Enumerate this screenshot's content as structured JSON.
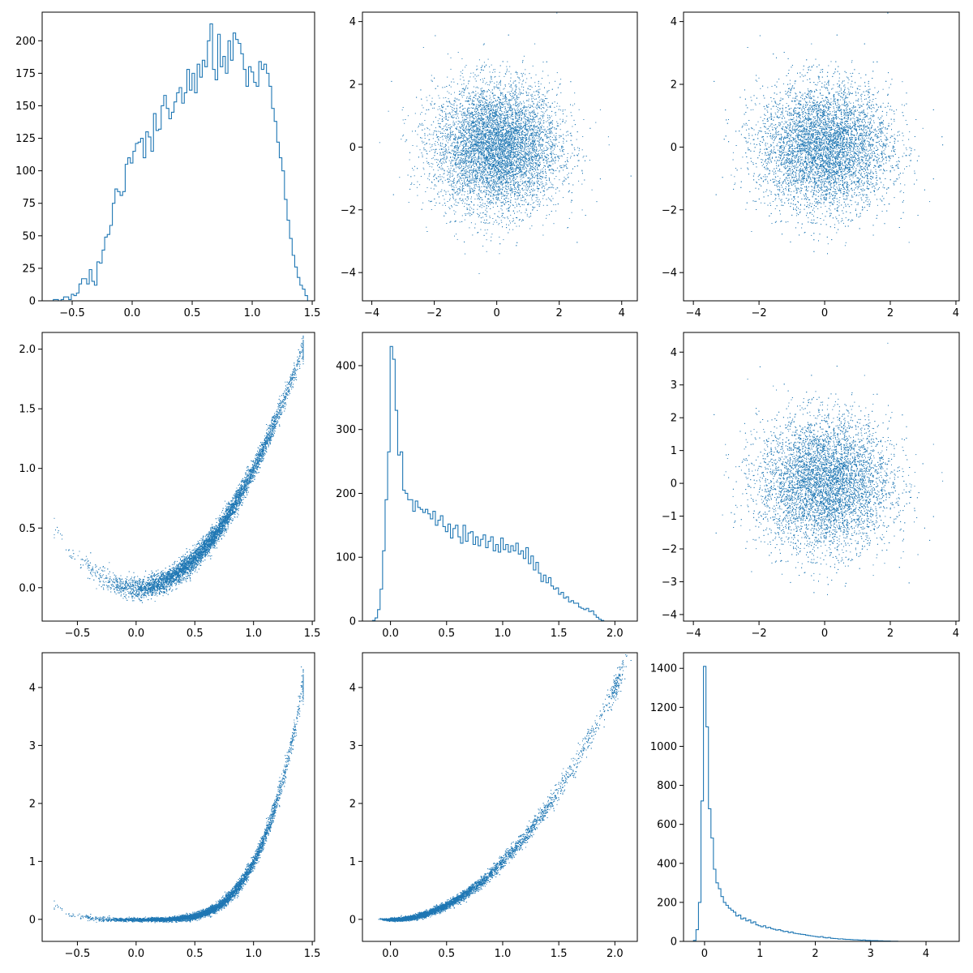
{
  "figure": {
    "background": "#ffffff",
    "accent": "#1f77b4"
  },
  "chart_data": [
    {
      "panel": "row1-col1",
      "type": "histogram",
      "xlim": [
        -0.75,
        1.52
      ],
      "ylim": [
        0,
        222
      ],
      "xticks": [
        -0.5,
        0.0,
        0.5,
        1.0,
        1.5
      ],
      "yticks": [
        0,
        25,
        50,
        75,
        100,
        125,
        150,
        175,
        200
      ],
      "xtick_labels": [
        "−0.5",
        "0.0",
        "0.5",
        "1.0",
        "1.5"
      ],
      "ytick_labels": [
        "0",
        "25",
        "50",
        "75",
        "100",
        "125",
        "150",
        "175",
        "200"
      ],
      "bin_start": -0.7,
      "bin_width": 0.0214,
      "counts": [
        0,
        0,
        1,
        1,
        0,
        1,
        3,
        3,
        1,
        5,
        4,
        6,
        13,
        17,
        17,
        13,
        24,
        15,
        12,
        30,
        29,
        39,
        49,
        51,
        58,
        75,
        86,
        84,
        81,
        84,
        105,
        110,
        106,
        115,
        121,
        122,
        125,
        110,
        130,
        126,
        115,
        144,
        131,
        132,
        150,
        158,
        148,
        140,
        145,
        153,
        160,
        164,
        152,
        160,
        178,
        162,
        175,
        160,
        182,
        172,
        185,
        180,
        200,
        213,
        178,
        170,
        205,
        180,
        188,
        175,
        200,
        185,
        206,
        201,
        198,
        190,
        178,
        165,
        180,
        176,
        168,
        165,
        184,
        178,
        182,
        175,
        165,
        148,
        138,
        122,
        110,
        100,
        78,
        62,
        48,
        35,
        26,
        18,
        12,
        9,
        4
      ]
    },
    {
      "panel": "row1-col2",
      "type": "scatter",
      "xlim": [
        -4.3,
        4.5
      ],
      "ylim": [
        -4.9,
        4.3
      ],
      "xticks": [
        -4,
        -2,
        0,
        2,
        4
      ],
      "yticks": [
        -4,
        -2,
        0,
        2,
        4
      ],
      "xtick_labels": [
        "−4",
        "−2",
        "0",
        "2",
        "4"
      ],
      "ytick_labels": [
        "−4",
        "−2",
        "0",
        "2",
        "4"
      ],
      "distribution": "standard bivariate normal (≈10000 points)",
      "x_mean": 0,
      "x_sd": 1,
      "y_mean": 0,
      "y_sd": 1,
      "relation": "independent"
    },
    {
      "panel": "row1-col3",
      "type": "scatter",
      "xlim": [
        -4.3,
        4.1
      ],
      "ylim": [
        -4.9,
        4.3
      ],
      "xticks": [
        -4,
        -2,
        0,
        2,
        4
      ],
      "yticks": [
        -4,
        -2,
        0,
        2,
        4
      ],
      "xtick_labels": [
        "−4",
        "−2",
        "0",
        "2",
        "4"
      ],
      "ytick_labels": [
        "−4",
        "−2",
        "0",
        "2",
        "4"
      ],
      "distribution": "standard bivariate normal (≈10000 points)",
      "x_mean": 0,
      "x_sd": 1,
      "y_mean": 0,
      "y_sd": 1,
      "relation": "independent"
    },
    {
      "panel": "row2-col1",
      "type": "scatter",
      "xlim": [
        -0.8,
        1.52
      ],
      "ylim": [
        -0.28,
        2.14
      ],
      "xticks": [
        -0.5,
        0.0,
        0.5,
        1.0,
        1.5
      ],
      "yticks": [
        0.0,
        0.5,
        1.0,
        1.5,
        2.0
      ],
      "xtick_labels": [
        "−0.5",
        "0.0",
        "0.5",
        "1.0",
        "1.5"
      ],
      "ytick_labels": [
        "0.0",
        "0.5",
        "1.0",
        "1.5",
        "2.0"
      ],
      "distribution": "y ≈ x² with small noise, x in [-0.7, 1.4]",
      "relation": "y = x^2"
    },
    {
      "panel": "row2-col2",
      "type": "histogram",
      "xlim": [
        -0.25,
        2.2
      ],
      "ylim": [
        0,
        452
      ],
      "xticks": [
        0.0,
        0.5,
        1.0,
        1.5,
        2.0
      ],
      "yticks": [
        0,
        100,
        200,
        300,
        400
      ],
      "xtick_labels": [
        "0.0",
        "0.5",
        "1.0",
        "1.5",
        "2.0"
      ],
      "ytick_labels": [
        "0",
        "100",
        "200",
        "300",
        "400"
      ],
      "bin_start": -0.16,
      "bin_width": 0.0224,
      "counts": [
        1,
        5,
        18,
        50,
        110,
        190,
        265,
        430,
        410,
        330,
        260,
        265,
        205,
        200,
        190,
        190,
        172,
        188,
        178,
        175,
        170,
        175,
        168,
        160,
        172,
        150,
        158,
        165,
        148,
        140,
        152,
        130,
        145,
        150,
        132,
        122,
        150,
        125,
        138,
        140,
        120,
        132,
        118,
        128,
        135,
        115,
        125,
        132,
        110,
        120,
        108,
        130,
        112,
        120,
        108,
        118,
        110,
        122,
        105,
        110,
        98,
        115,
        90,
        102,
        80,
        92,
        75,
        62,
        72,
        60,
        68,
        55,
        50,
        52,
        42,
        45,
        36,
        38,
        30,
        32,
        28,
        28,
        22,
        20,
        18,
        20,
        15,
        16,
        10,
        6,
        3,
        1
      ]
    },
    {
      "panel": "row2-col3",
      "type": "scatter",
      "xlim": [
        -4.3,
        4.1
      ],
      "ylim": [
        -4.2,
        4.6
      ],
      "xticks": [
        -4,
        -2,
        0,
        2,
        4
      ],
      "yticks": [
        -4,
        -3,
        -2,
        -1,
        0,
        1,
        2,
        3,
        4
      ],
      "xtick_labels": [
        "−4",
        "−2",
        "0",
        "2",
        "4"
      ],
      "ytick_labels": [
        "−4",
        "−3",
        "−2",
        "−1",
        "0",
        "1",
        "2",
        "3",
        "4"
      ],
      "distribution": "standard bivariate normal (≈10000 points)",
      "x_mean": 0,
      "x_sd": 1,
      "y_mean": 0,
      "y_sd": 1,
      "relation": "independent"
    },
    {
      "panel": "row3-col1",
      "type": "scatter",
      "xlim": [
        -0.8,
        1.52
      ],
      "ylim": [
        -0.38,
        4.6
      ],
      "xticks": [
        -0.5,
        0.0,
        0.5,
        1.0,
        1.5
      ],
      "yticks": [
        0,
        1,
        2,
        3,
        4
      ],
      "xtick_labels": [
        "−0.5",
        "0.0",
        "0.5",
        "1.0",
        "1.5"
      ],
      "ytick_labels": [
        "0",
        "1",
        "2",
        "3",
        "4"
      ],
      "distribution": "y ≈ x⁴ with small noise, x in [-0.7, 1.4]",
      "relation": "y = x^4"
    },
    {
      "panel": "row3-col2",
      "type": "scatter",
      "xlim": [
        -0.25,
        2.2
      ],
      "ylim": [
        -0.38,
        4.6
      ],
      "xticks": [
        0.0,
        0.5,
        1.0,
        1.5,
        2.0
      ],
      "yticks": [
        0,
        1,
        2,
        3,
        4
      ],
      "xtick_labels": [
        "0.0",
        "0.5",
        "1.0",
        "1.5",
        "2.0"
      ],
      "ytick_labels": [
        "0",
        "1",
        "2",
        "3",
        "4"
      ],
      "distribution": "y ≈ x² with small noise, x in [-0.15, 2.05]",
      "relation": "y = x^2"
    },
    {
      "panel": "row3-col3",
      "type": "histogram",
      "xlim": [
        -0.38,
        4.6
      ],
      "ylim": [
        0,
        1480
      ],
      "xticks": [
        0,
        1,
        2,
        3,
        4
      ],
      "yticks": [
        0,
        200,
        400,
        600,
        800,
        1000,
        1200,
        1400
      ],
      "xtick_labels": [
        "0",
        "1",
        "2",
        "3",
        "4"
      ],
      "ytick_labels": [
        "0",
        "200",
        "400",
        "600",
        "800",
        "1000",
        "1200",
        "1400"
      ],
      "bin_start": -0.2,
      "bin_width": 0.045,
      "counts": [
        5,
        60,
        200,
        720,
        1410,
        1100,
        680,
        530,
        370,
        300,
        270,
        230,
        200,
        185,
        170,
        160,
        150,
        130,
        135,
        115,
        120,
        105,
        110,
        95,
        100,
        85,
        80,
        75,
        80,
        70,
        72,
        65,
        62,
        58,
        60,
        55,
        50,
        52,
        45,
        48,
        42,
        40,
        38,
        36,
        35,
        32,
        30,
        28,
        26,
        24,
        22,
        25,
        20,
        18,
        20,
        16,
        15,
        14,
        12,
        13,
        11,
        10,
        10,
        9,
        8,
        8,
        7,
        6,
        7,
        5,
        5,
        4,
        4,
        4,
        3,
        3,
        2,
        2,
        2,
        1,
        1,
        1
      ]
    }
  ]
}
